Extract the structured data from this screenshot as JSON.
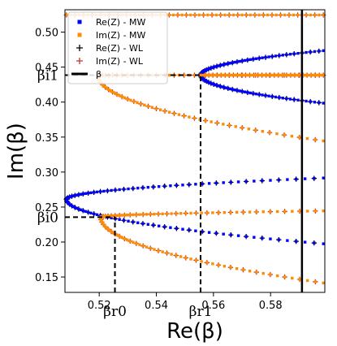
{
  "chart_data": {
    "type": "scatter",
    "xlabel": "Re(β)",
    "ylabel": "Im(β)",
    "xlim": [
      0.508,
      0.599
    ],
    "ylim": [
      0.128,
      0.532
    ],
    "xticks": [
      0.52,
      0.54,
      0.56,
      0.58
    ],
    "xtick_labels": [
      "0.52",
      "0.54",
      "0.56",
      "0.58"
    ],
    "yticks": [
      0.15,
      0.2,
      0.25,
      0.3,
      0.35,
      0.4,
      0.45,
      0.5
    ],
    "ytick_labels": [
      "0.15",
      "0.20",
      "0.25",
      "0.30",
      "0.35",
      "0.40",
      "0.45",
      "0.50"
    ],
    "legend": {
      "placement": "top-left",
      "entries": [
        {
          "label": "Re(Z) - MW",
          "color": "#0000ff",
          "marker": "square"
        },
        {
          "label": "Im(Z) - MW",
          "color": "#ff8c00",
          "marker": "square"
        },
        {
          "label": "Re(Z) - WL",
          "color": "#000000",
          "marker": "plus"
        },
        {
          "label": "Im(Z) - WL",
          "color": "#c0392b",
          "marker": "plus"
        },
        {
          "label": "β",
          "color": "#000000",
          "marker": "line"
        }
      ]
    },
    "vertical_line_x": 0.591,
    "series": [
      {
        "name": "Re(Z) - MW",
        "color": "#0000ff",
        "branches": [
          {
            "vertex": [
              0.5555,
              0.4385
            ],
            "upper": 0.4735,
            "lower": 0.3985,
            "x_end": 0.5985
          },
          {
            "vertex": [
              0.5085,
              0.261
            ],
            "upper": 0.2915,
            "lower": 0.1975,
            "x_end": 0.5985
          }
        ]
      },
      {
        "name": "Im(Z) - MW",
        "color": "#ff8c00",
        "branches": [
          {
            "vertex": [
              0.5195,
              0.4385
            ],
            "upper": 0.4385,
            "lower": 0.3445,
            "x_end": 0.5985
          },
          {
            "vertex": [
              0.5205,
              0.2355
            ],
            "upper": 0.2445,
            "lower": 0.1415,
            "x_end": 0.5985
          },
          {
            "horizontal": 0.5245,
            "x_start": 0.5085,
            "x_end": 0.5985
          },
          {
            "horizontal": 0.4385,
            "x_start": 0.5555,
            "x_end": 0.5985
          }
        ]
      }
    ],
    "annotations": [
      {
        "label": "βi1",
        "y": 0.4385,
        "x_from": 0.508,
        "x_to": 0.5555
      },
      {
        "label": "βi0",
        "y": 0.2355,
        "x_from": 0.508,
        "x_to": 0.5255
      },
      {
        "label": "βr0",
        "x": 0.5255,
        "y_from": 0.128,
        "y_to": 0.2355
      },
      {
        "label": "βr1",
        "x": 0.5555,
        "y_from": 0.128,
        "y_to": 0.4385
      }
    ]
  }
}
